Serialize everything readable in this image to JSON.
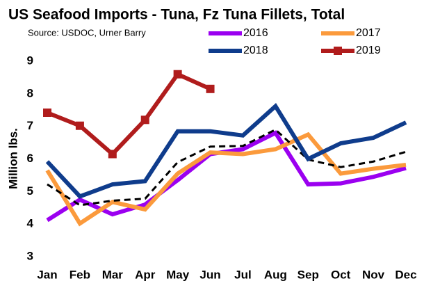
{
  "chart_data": {
    "type": "line",
    "title": "US Seafood Imports - Tuna, Fz Tuna Fillets, Total",
    "subtitle": "Source: USDOC, Urner Barry",
    "y_label": "Million lbs.",
    "categories": [
      "Jan",
      "Feb",
      "Mar",
      "Apr",
      "May",
      "Jun",
      "Jul",
      "Aug",
      "Sep",
      "Oct",
      "Nov",
      "Dec"
    ],
    "series": [
      {
        "name": "2016",
        "color": "#9b00f0",
        "values": [
          4.12,
          4.75,
          4.3,
          4.6,
          5.35,
          6.15,
          6.3,
          6.8,
          5.22,
          5.25,
          5.45,
          5.72
        ]
      },
      {
        "name": "2017",
        "color": "#fb9a3c",
        "values": [
          5.65,
          4.02,
          4.68,
          4.45,
          5.55,
          6.2,
          6.15,
          6.3,
          6.75,
          5.55,
          5.7,
          5.82
        ]
      },
      {
        "color": "#000000",
        "dashed": true,
        "values": [
          5.22,
          4.58,
          4.72,
          4.78,
          5.9,
          6.38,
          6.4,
          6.9,
          5.98,
          5.75,
          5.92,
          6.22
        ]
      },
      {
        "name": "2018",
        "color": "#0f3c8c",
        "values": [
          5.92,
          4.85,
          5.22,
          5.32,
          6.85,
          6.85,
          6.72,
          7.62,
          6.0,
          6.48,
          6.65,
          7.12
        ]
      },
      {
        "name": "2019",
        "color": "#b01c1c",
        "marker": "square",
        "values": [
          7.42,
          7.02,
          6.15,
          7.2,
          8.6,
          8.15,
          null,
          null,
          null,
          null,
          null,
          null
        ]
      }
    ],
    "ylim": [
      3,
      9
    ],
    "yticks": [
      3,
      4,
      5,
      6,
      7,
      8,
      9
    ],
    "grid": false
  }
}
